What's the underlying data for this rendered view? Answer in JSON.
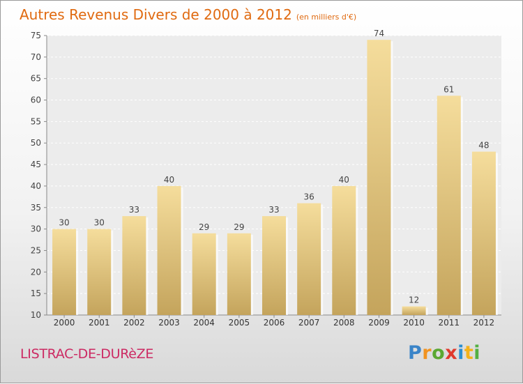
{
  "title": "Autres Revenus Divers de 2000 à 2012",
  "subtitle": "(en milliers d'€)",
  "town": "LISTRAC-DE-DURèZE",
  "brand": {
    "letters": [
      "P",
      "r",
      "o",
      "x",
      "i",
      "t",
      "i"
    ],
    "colors": [
      "#3a84c8",
      "#f19320",
      "#5aa832",
      "#e03a2d",
      "#2c8fd1",
      "#f4b21a",
      "#53b043"
    ]
  },
  "colors": {
    "bar_light": "#f5dd9c",
    "bar_dark": "#c4a45c",
    "title": "#e06a10",
    "town": "#cc2a63"
  },
  "chart_data": {
    "type": "bar",
    "categories": [
      "2000",
      "2001",
      "2002",
      "2003",
      "2004",
      "2005",
      "2006",
      "2007",
      "2008",
      "2009",
      "2010",
      "2011",
      "2012"
    ],
    "values": [
      30,
      30,
      33,
      40,
      29,
      29,
      33,
      36,
      40,
      74,
      12,
      61,
      48
    ],
    "ylim": [
      10,
      75
    ],
    "yticks": [
      10,
      15,
      20,
      25,
      30,
      35,
      40,
      45,
      50,
      55,
      60,
      65,
      70,
      75
    ],
    "grid": true
  }
}
